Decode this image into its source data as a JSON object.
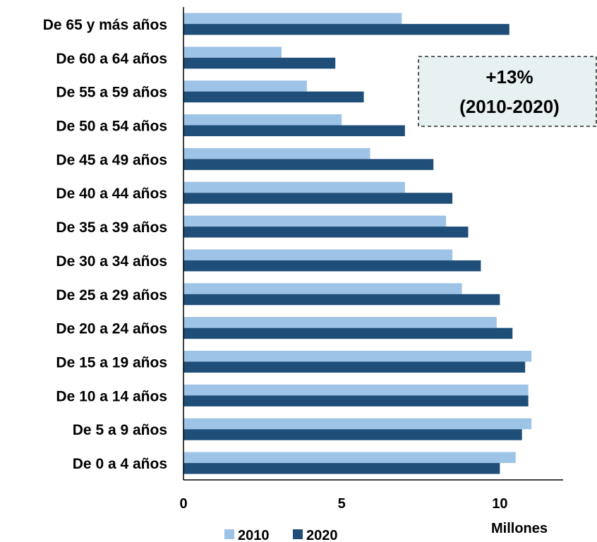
{
  "chart_data": {
    "type": "bar",
    "orientation": "horizontal",
    "categories": [
      "De 0 a 4 años",
      "De 5 a 9 años",
      "De 10 a 14 años",
      "De 15 a 19 años",
      "De 20 a 24 años",
      "De 25 a 29 años",
      "De 30 a 34 años",
      "De 35 a 39 años",
      "De 40 a 44 años",
      "De 45 a 49 años",
      "De 50 a 54 años",
      "De 55 a 59 años",
      "De 60 a 64 años",
      "De 65 y más años"
    ],
    "series": [
      {
        "name": "2010",
        "color": "#9dc3e6",
        "values": [
          10.5,
          11.0,
          10.9,
          11.0,
          9.9,
          8.8,
          8.5,
          8.3,
          7.0,
          5.9,
          5.0,
          3.9,
          3.1,
          6.9
        ]
      },
      {
        "name": "2020",
        "color": "#1f4e79",
        "values": [
          10.0,
          10.7,
          10.9,
          10.8,
          10.4,
          10.0,
          9.4,
          9.0,
          8.5,
          7.9,
          7.0,
          5.7,
          4.8,
          10.3
        ]
      }
    ],
    "xlabel": "Millones",
    "xlim": [
      0,
      12
    ],
    "xticks": [
      0,
      5,
      10
    ],
    "grid": false,
    "legend_position": "bottom",
    "annotation": {
      "line1": "+13%",
      "line2": "(2010-2020)",
      "background": "#e8f1f1"
    }
  }
}
